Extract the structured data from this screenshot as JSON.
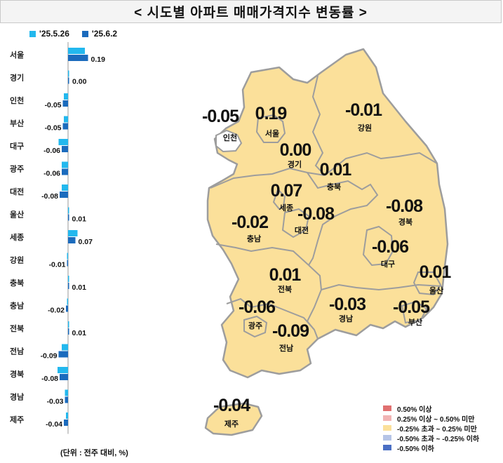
{
  "title": "< 시도별 아파트 매매가격지수 변동률 >",
  "legend": {
    "prev_label": "'25.5.26",
    "curr_label": "'25.6.2",
    "prev_color": "#23b8ee",
    "curr_color": "#1b6bbd"
  },
  "unit_note": "(단위 : 전주 대비, %)",
  "chart_data": {
    "type": "bar",
    "orientation": "horizontal",
    "categories": [
      "서울",
      "경기",
      "인천",
      "부산",
      "대구",
      "광주",
      "대전",
      "울산",
      "세종",
      "강원",
      "충북",
      "충남",
      "전북",
      "전남",
      "경북",
      "경남",
      "제주"
    ],
    "series": [
      {
        "name": "'25.5.26",
        "values": [
          0.16,
          0.0,
          -0.04,
          -0.04,
          -0.09,
          -0.06,
          -0.06,
          0.0,
          0.09,
          -0.01,
          0.01,
          -0.01,
          0.01,
          -0.06,
          -0.1,
          -0.03,
          -0.02
        ]
      },
      {
        "name": "'25.6.2",
        "values": [
          0.19,
          0.0,
          -0.05,
          -0.05,
          -0.06,
          -0.06,
          -0.08,
          0.01,
          0.07,
          -0.01,
          0.01,
          -0.02,
          0.01,
          -0.09,
          -0.08,
          -0.03,
          -0.04
        ]
      }
    ],
    "data_labels": [
      "0.19",
      "0.00",
      "-0.05",
      "-0.05",
      "-0.06",
      "-0.06",
      "-0.08",
      "0.01",
      "0.07",
      "-0.01",
      "0.01",
      "-0.02",
      "0.01",
      "-0.09",
      "-0.08",
      "-0.03",
      "-0.04"
    ],
    "xlim": [
      -0.11,
      0.2
    ]
  },
  "map": {
    "fill_color": "#fbe09a",
    "border_color": "#9d9d9d",
    "labels": [
      {
        "value": "-0.05",
        "name": "인천"
      },
      {
        "value": "0.19",
        "name": "서울"
      },
      {
        "value": "-0.01",
        "name": "강원"
      },
      {
        "value": "0.00",
        "name": "경기"
      },
      {
        "value": "0.01",
        "name": "충북"
      },
      {
        "value": "0.07",
        "name": "세종"
      },
      {
        "value": "-0.08",
        "name": "대전"
      },
      {
        "value": "-0.02",
        "name": "충남"
      },
      {
        "value": "-0.08",
        "name": "경북"
      },
      {
        "value": "-0.06",
        "name": "대구"
      },
      {
        "value": "0.01",
        "name": "울산"
      },
      {
        "value": "0.01",
        "name": "전북"
      },
      {
        "value": "-0.06",
        "name": "광주"
      },
      {
        "value": "-0.03",
        "name": "경남"
      },
      {
        "value": "-0.05",
        "name": "부산"
      },
      {
        "value": "-0.09",
        "name": "전남"
      },
      {
        "value": "-0.04",
        "name": "제주"
      }
    ]
  },
  "map_legend": [
    {
      "label": "0.50% 이상",
      "color": "#e07070"
    },
    {
      "label": "0.25% 이상 ~ 0.50% 미만",
      "color": "#f1b4b4"
    },
    {
      "label": "-0.25% 초과 ~ 0.25% 미만",
      "color": "#fbe09a"
    },
    {
      "label": "-0.50% 초과 ~ -0.25% 이하",
      "color": "#b5c4e6"
    },
    {
      "label": "-0.50% 이하",
      "color": "#4a6fc4"
    }
  ]
}
